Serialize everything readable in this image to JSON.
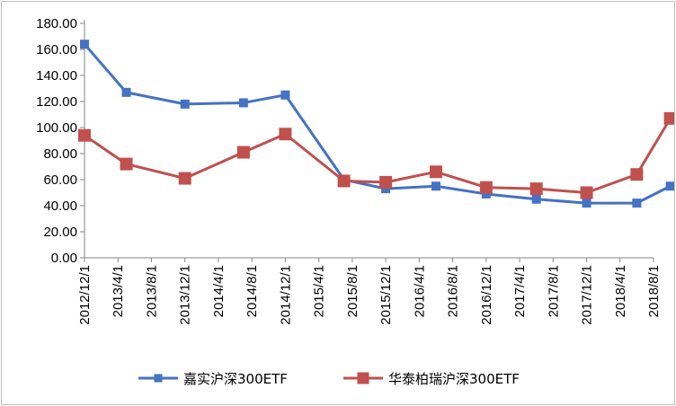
{
  "chart_data": {
    "type": "line",
    "categories": [
      "2012/12/1",
      "2013/4/1",
      "2013/8/1",
      "2013/12/1",
      "2014/4/1",
      "2014/8/1",
      "2014/12/1",
      "2015/4/1",
      "2015/8/1",
      "2015/12/1",
      "2016/4/1",
      "2016/8/1",
      "2016/12/1",
      "2017/4/1",
      "2017/8/1",
      "2017/12/1",
      "2018/4/1",
      "2018/8/1"
    ],
    "x": [
      "2012/12/1",
      "2013/5/1",
      "2013/12/1",
      "2014/7/1",
      "2014/12/1",
      "2015/7/1",
      "2015/12/1",
      "2016/6/1",
      "2016/12/1",
      "2017/6/1",
      "2017/12/1",
      "2018/6/1",
      "2018/10/1"
    ],
    "series": [
      {
        "name": "嘉实沪深300ETF",
        "color": "#4472c4",
        "marker": "square",
        "values": [
          164,
          127,
          118,
          119,
          125,
          60,
          53,
          55,
          49,
          45,
          42,
          42,
          55
        ]
      },
      {
        "name": "华泰柏瑞沪深300ETF",
        "color": "#c0504d",
        "marker": "square",
        "values": [
          94,
          72,
          61,
          81,
          95,
          59,
          58,
          66,
          54,
          53,
          50,
          64,
          107
        ]
      }
    ],
    "ytick_labels": [
      "0.00",
      "20.00",
      "40.00",
      "60.00",
      "80.00",
      "100.00",
      "120.00",
      "140.00",
      "160.00",
      "180.00"
    ],
    "ylim": [
      0,
      180
    ],
    "grid": false,
    "legend_position": "bottom"
  }
}
